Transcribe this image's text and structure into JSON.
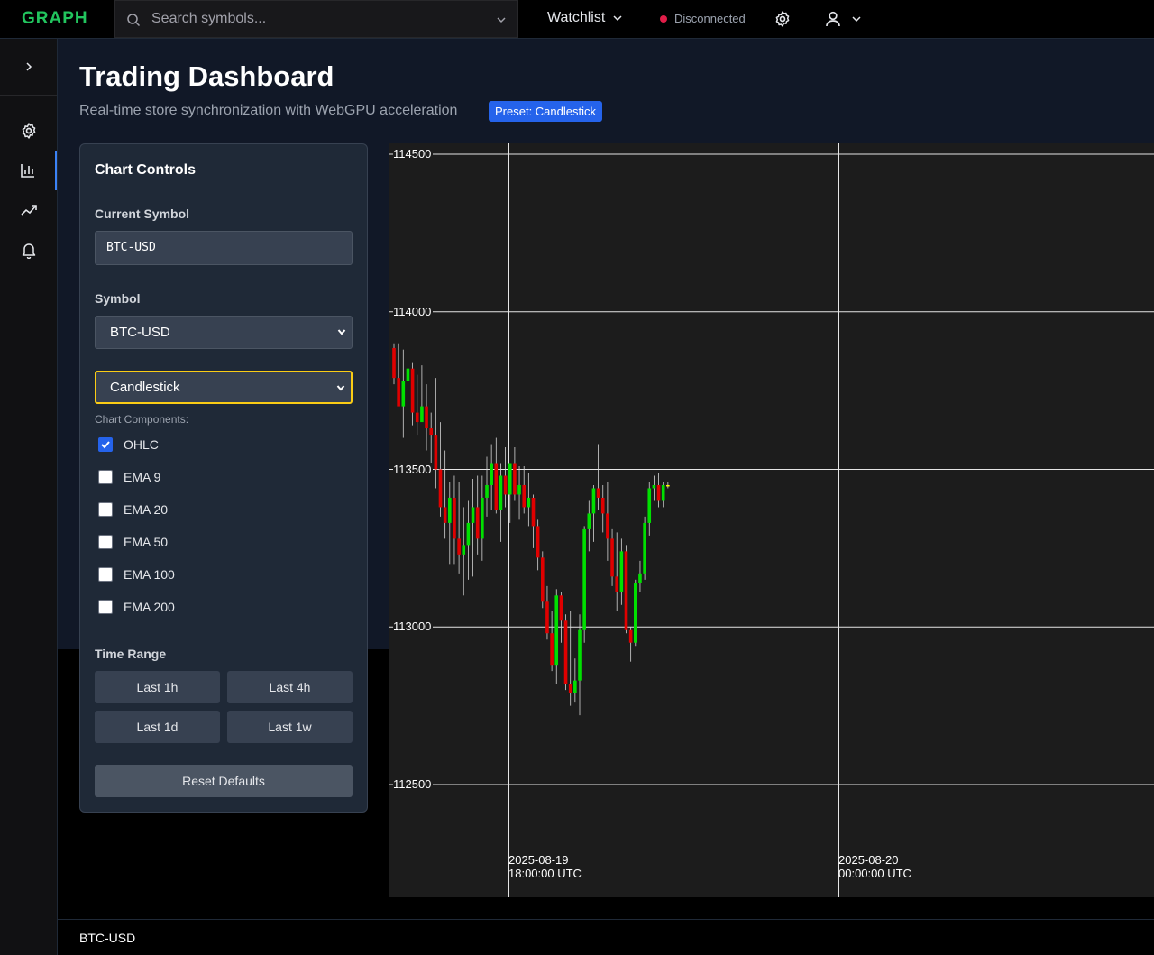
{
  "topbar": {
    "logo": "GRAPH",
    "search_placeholder": "Search symbols...",
    "watchlist_label": "Watchlist",
    "status_text": "Disconnected",
    "status_color": "#e11d48"
  },
  "sidebar": {
    "items": [
      {
        "icon": "expand-icon"
      },
      {
        "icon": "gear-icon"
      },
      {
        "icon": "bar-chart-icon",
        "active": true
      },
      {
        "icon": "trending-up-icon"
      },
      {
        "icon": "bell-icon"
      }
    ]
  },
  "header": {
    "title": "Trading Dashboard",
    "subtitle": "Real-time store synchronization with WebGPU acceleration",
    "preset_badge": "Preset: Candlestick"
  },
  "controls": {
    "title": "Chart Controls",
    "current_symbol_label": "Current Symbol",
    "current_symbol_value": "BTC-USD",
    "symbol_label": "Symbol",
    "symbol_value": "BTC-USD",
    "chart_type_value": "Candlestick",
    "components_label": "Chart Components:",
    "components": [
      {
        "label": "OHLC",
        "checked": true
      },
      {
        "label": "EMA 9",
        "checked": false
      },
      {
        "label": "EMA 20",
        "checked": false
      },
      {
        "label": "EMA 50",
        "checked": false
      },
      {
        "label": "EMA 100",
        "checked": false
      },
      {
        "label": "EMA 200",
        "checked": false
      }
    ],
    "time_range_label": "Time Range",
    "time_ranges": [
      "Last 1h",
      "Last 4h",
      "Last 1d",
      "Last 1w"
    ],
    "reset_label": "Reset Defaults"
  },
  "chart_data": {
    "type": "candlestick",
    "y_ticks": [
      114500,
      114000,
      113500,
      113000,
      112500
    ],
    "ylim": [
      112500,
      114500
    ],
    "x_ticks": [
      {
        "line1": "2025-08-19",
        "line2": "18:00:00 UTC"
      },
      {
        "line1": "2025-08-20",
        "line2": "00:00:00 UTC"
      }
    ],
    "up_color": "#00e000",
    "down_color": "#e00000",
    "candles": [
      [
        113885,
        113900,
        113770,
        113790
      ],
      [
        113790,
        113900,
        113720,
        113700
      ],
      [
        113700,
        113880,
        113600,
        113780
      ],
      [
        113780,
        113860,
        113720,
        113820
      ],
      [
        113820,
        113840,
        113640,
        113680
      ],
      [
        113680,
        113800,
        113610,
        113650
      ],
      [
        113650,
        113830,
        113660,
        113700
      ],
      [
        113700,
        113770,
        113560,
        113630
      ],
      [
        113630,
        113680,
        113520,
        113610
      ],
      [
        113610,
        113790,
        113440,
        113500
      ],
      [
        113500,
        113650,
        113350,
        113380
      ],
      [
        113380,
        113560,
        113280,
        113330
      ],
      [
        113330,
        113460,
        113200,
        113410
      ],
      [
        113410,
        113480,
        113200,
        113280
      ],
      [
        113280,
        113460,
        113170,
        113230
      ],
      [
        113230,
        113380,
        113100,
        113260
      ],
      [
        113260,
        113400,
        113150,
        113330
      ],
      [
        113330,
        113470,
        113160,
        113380
      ],
      [
        113380,
        113480,
        113230,
        113280
      ],
      [
        113280,
        113480,
        113210,
        113410
      ],
      [
        113410,
        113540,
        113350,
        113450
      ],
      [
        113450,
        113580,
        113370,
        113520
      ],
      [
        113520,
        113600,
        113360,
        113370
      ],
      [
        113370,
        113520,
        113270,
        113480
      ],
      [
        113480,
        113570,
        113380,
        113420
      ],
      [
        113420,
        113520,
        113330,
        113520
      ],
      [
        113520,
        113570,
        113400,
        113420
      ],
      [
        113420,
        113510,
        113340,
        113450
      ],
      [
        113450,
        113510,
        113360,
        113380
      ],
      [
        113380,
        113490,
        113320,
        113410
      ],
      [
        113410,
        113420,
        113250,
        113320
      ],
      [
        113320,
        113340,
        113180,
        113220
      ],
      [
        113220,
        113240,
        113060,
        113080
      ],
      [
        113080,
        113130,
        112960,
        112980
      ],
      [
        112980,
        113050,
        112860,
        112880
      ],
      [
        112880,
        113120,
        112820,
        113100
      ],
      [
        113100,
        113110,
        112950,
        113020
      ],
      [
        113020,
        113040,
        112800,
        112820
      ],
      [
        112820,
        113050,
        112750,
        112790
      ],
      [
        112790,
        112900,
        112760,
        112830
      ],
      [
        112830,
        113040,
        112720,
        112990
      ],
      [
        112990,
        113320,
        112950,
        113310
      ],
      [
        113310,
        113400,
        113240,
        113360
      ],
      [
        113360,
        113450,
        113270,
        113440
      ],
      [
        113440,
        113580,
        113370,
        113410
      ],
      [
        113410,
        113450,
        113300,
        113360
      ],
      [
        113360,
        113460,
        113210,
        113280
      ],
      [
        113280,
        113310,
        113130,
        113160
      ],
      [
        113160,
        113300,
        113050,
        113110
      ],
      [
        113110,
        113280,
        113070,
        113240
      ],
      [
        113240,
        113260,
        112980,
        112990
      ],
      [
        112990,
        113000,
        112890,
        112950
      ],
      [
        112950,
        113150,
        112940,
        113140
      ],
      [
        113140,
        113210,
        113110,
        113170
      ],
      [
        113170,
        113350,
        113150,
        113330
      ],
      [
        113330,
        113460,
        113290,
        113440
      ],
      [
        113440,
        113480,
        113400,
        113450
      ],
      [
        113450,
        113490,
        113380,
        113400
      ],
      [
        113400,
        113460,
        113380,
        113450
      ],
      [
        113450,
        113460,
        113440,
        113450
      ]
    ]
  },
  "footer": {
    "symbol": "BTC-USD"
  }
}
